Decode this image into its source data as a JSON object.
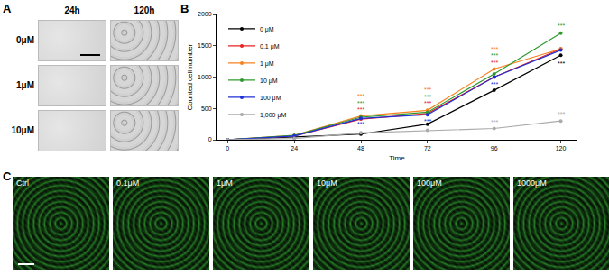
{
  "panel_a": {
    "label": "A",
    "columns": [
      "24h",
      "120h"
    ],
    "rows": [
      "0μM",
      "1μM",
      "10μM"
    ]
  },
  "chart_data": {
    "label": "B",
    "type": "line",
    "x": [
      0,
      24,
      48,
      72,
      96,
      120
    ],
    "series": [
      {
        "name": "0 μM",
        "color": "#000000",
        "marker": "circle",
        "values": [
          0,
          40,
          90,
          250,
          790,
          1350
        ]
      },
      {
        "name": "0.1 μM",
        "color": "#e8231f",
        "marker": "circle",
        "values": [
          0,
          60,
          330,
          420,
          1000,
          1450
        ]
      },
      {
        "name": "1 μM",
        "color": "#f7811e",
        "marker": "circle",
        "values": [
          0,
          70,
          380,
          470,
          1130,
          1450
        ]
      },
      {
        "name": "10 μM",
        "color": "#2e9a2e",
        "marker": "circle",
        "values": [
          0,
          70,
          360,
          440,
          1050,
          1700
        ]
      },
      {
        "name": "100 μM",
        "color": "#1f2fd6",
        "marker": "circle",
        "values": [
          0,
          60,
          340,
          400,
          1000,
          1430
        ]
      },
      {
        "name": "1,000 μM",
        "color": "#aaaaaa",
        "marker": "circle",
        "values": [
          0,
          20,
          110,
          150,
          180,
          300
        ]
      }
    ],
    "x_label": "Time",
    "y_label": "Counted cell number",
    "xlim": [
      -4,
      126
    ],
    "xticks": [
      0,
      24,
      48,
      72,
      96,
      120
    ],
    "ylim": [
      0,
      2000
    ],
    "yticks": [
      0,
      500,
      1000,
      1500,
      2000
    ],
    "grid": false,
    "legend": "top left",
    "annotations": [
      {
        "x": 48,
        "y": 700,
        "text": "***",
        "color": "#f7811e"
      },
      {
        "x": 48,
        "y": 590,
        "text": "***",
        "color": "#2e9a2e"
      },
      {
        "x": 48,
        "y": 480,
        "text": "***",
        "color": "#e8231f"
      },
      {
        "x": 48,
        "y": 250,
        "text": "***",
        "color": "#1f2fd6"
      },
      {
        "x": 72,
        "y": 800,
        "text": "***",
        "color": "#f7811e"
      },
      {
        "x": 72,
        "y": 690,
        "text": "***",
        "color": "#2e9a2e"
      },
      {
        "x": 72,
        "y": 580,
        "text": "***",
        "color": "#e8231f"
      },
      {
        "x": 72,
        "y": 300,
        "text": "***",
        "color": "#1f2fd6"
      },
      {
        "x": 96,
        "y": 1450,
        "text": "***",
        "color": "#f7811e"
      },
      {
        "x": 96,
        "y": 1340,
        "text": "***",
        "color": "#2e9a2e"
      },
      {
        "x": 96,
        "y": 1230,
        "text": "***",
        "color": "#e8231f"
      },
      {
        "x": 96,
        "y": 880,
        "text": "***",
        "color": "#1f2fd6"
      },
      {
        "x": 96,
        "y": 280,
        "text": "***",
        "color": "#aaaaaa"
      },
      {
        "x": 120,
        "y": 1820,
        "text": "***",
        "color": "#2e9a2e"
      },
      {
        "x": 120,
        "y": 1220,
        "text": "***",
        "color": "#000000"
      },
      {
        "x": 120,
        "y": 410,
        "text": "***",
        "color": "#aaaaaa"
      }
    ]
  },
  "panel_c": {
    "label": "C",
    "images": [
      "Ctrl",
      "0.1μM",
      "1μM",
      "10μM",
      "100μM",
      "1000μM"
    ]
  }
}
